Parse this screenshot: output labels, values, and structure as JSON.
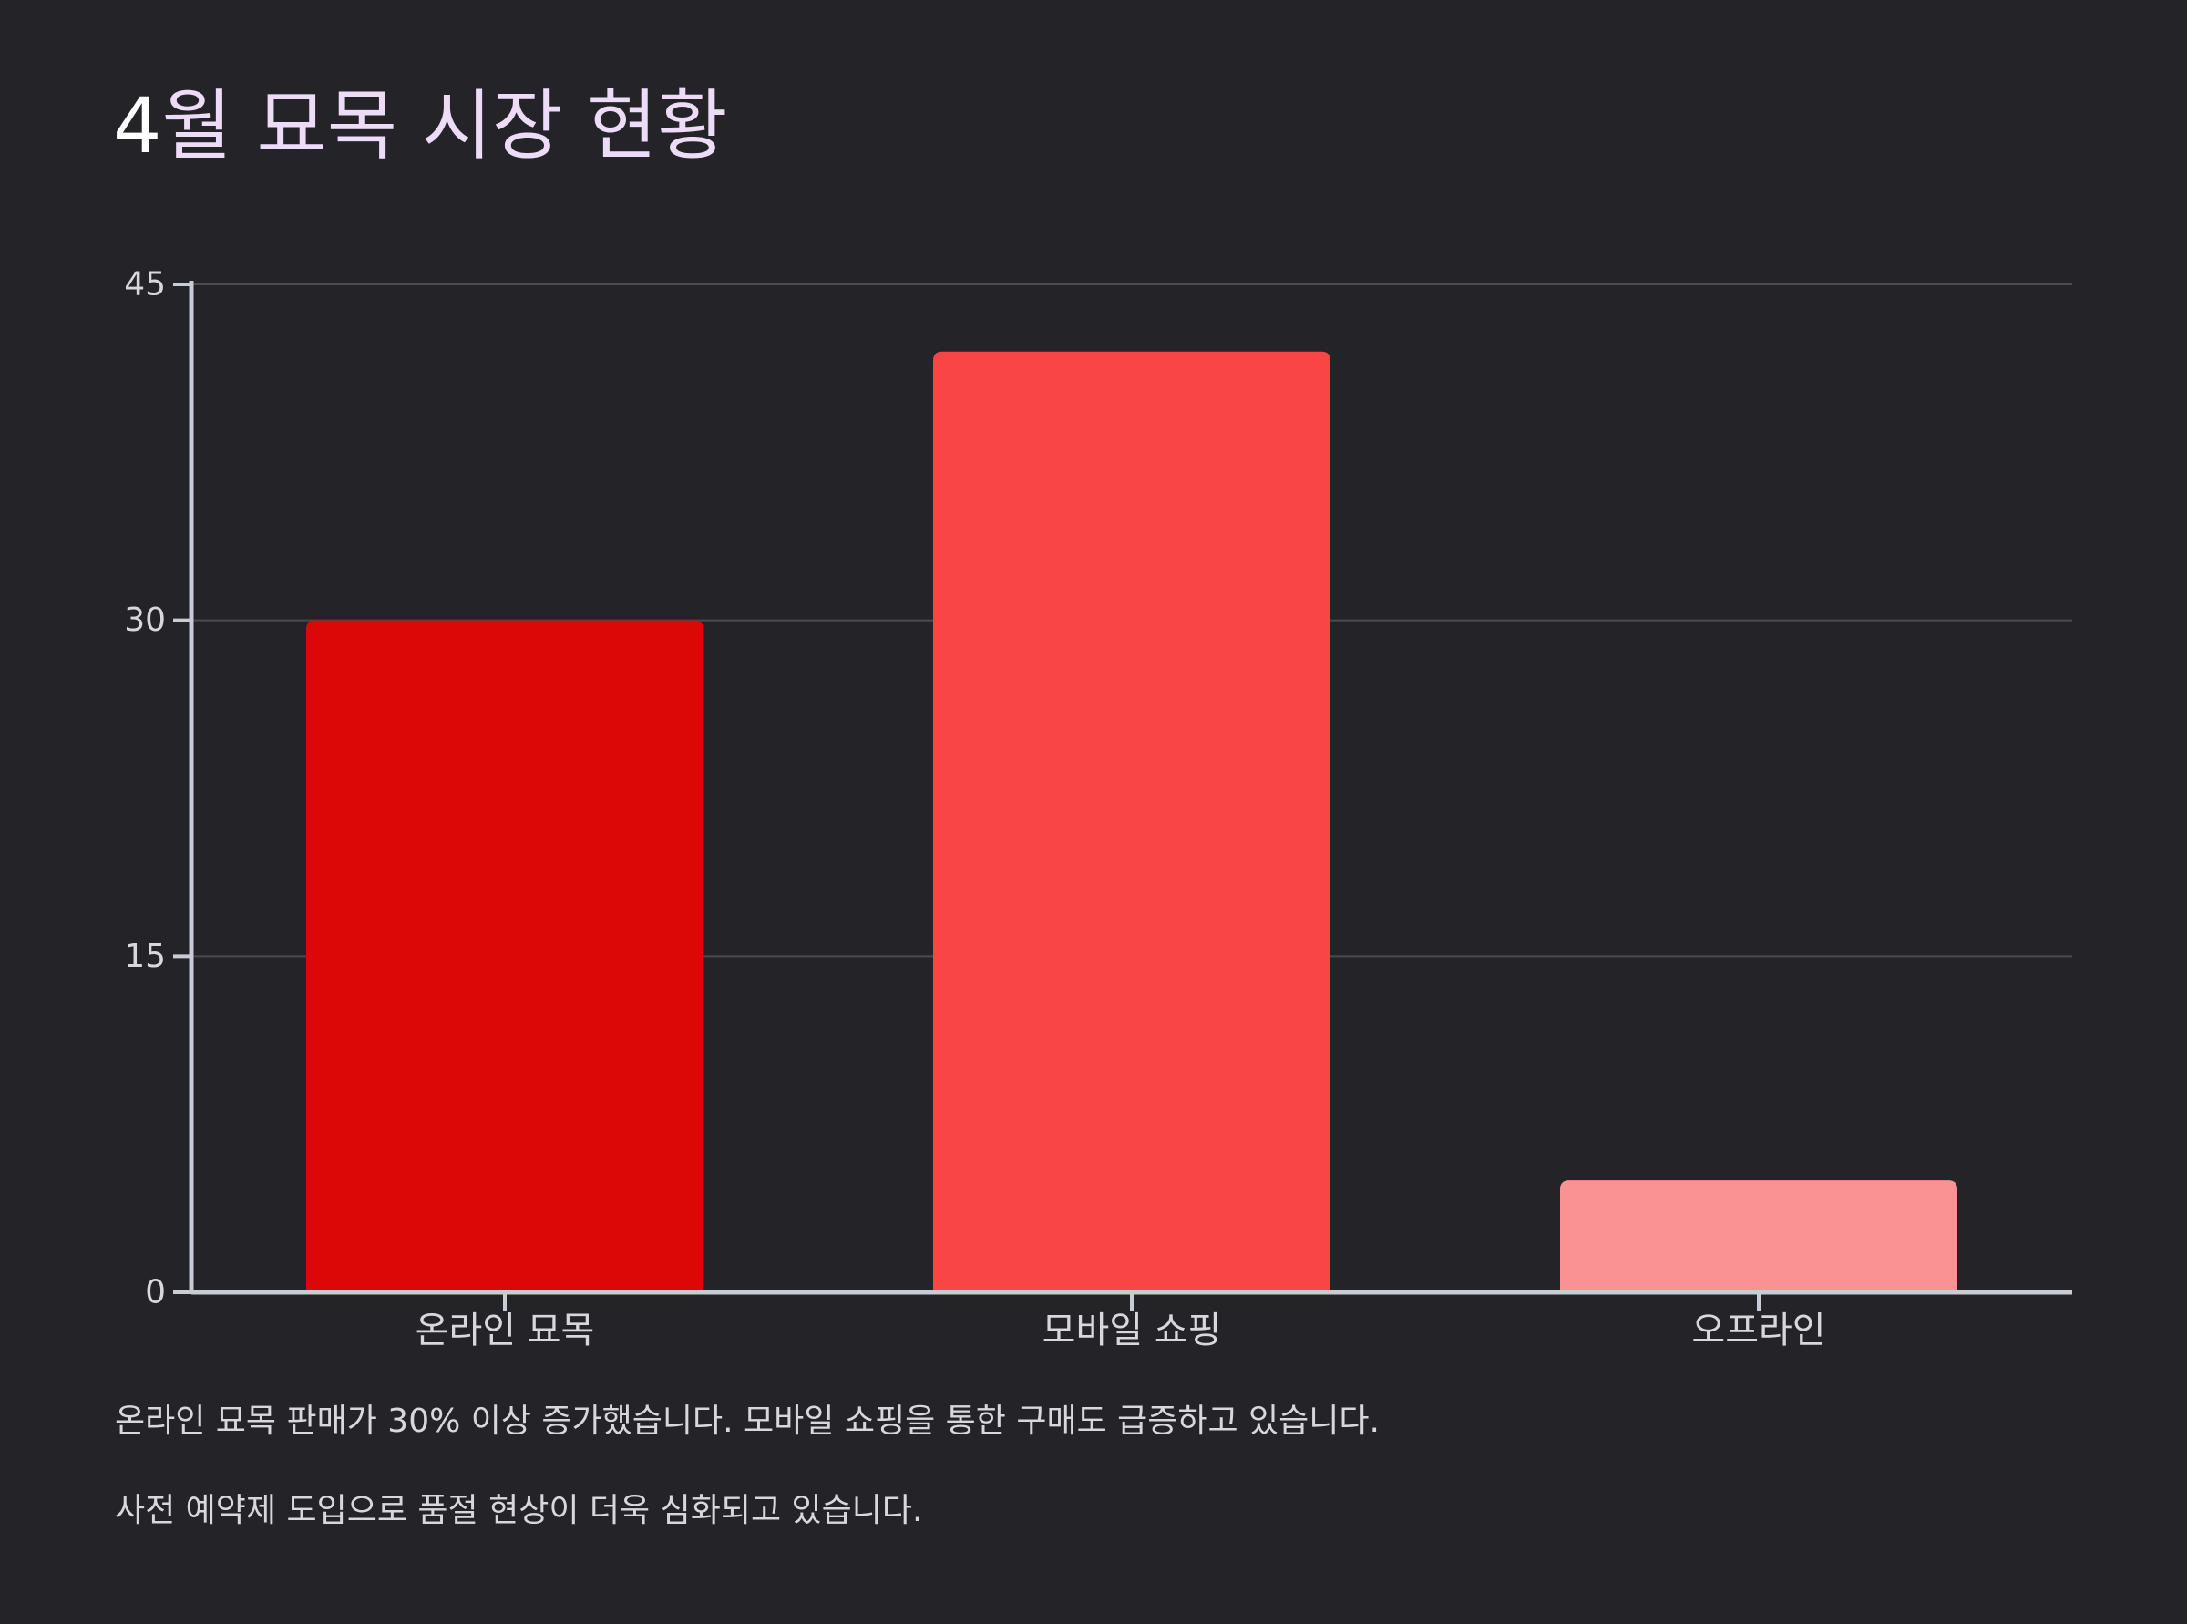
{
  "title": {
    "number": "4",
    "text": "월 묘목 시장 현황"
  },
  "chart_data": {
    "type": "bar",
    "categories": [
      "온라인 묘목",
      "모바일 쇼핑",
      "오프라인"
    ],
    "values": [
      30,
      42,
      5
    ],
    "colors": [
      "#dc0707",
      "#f94545",
      "#fa9294"
    ],
    "yticks": [
      "0",
      "15",
      "30",
      "45"
    ],
    "ylim": [
      0,
      45
    ],
    "grid": true
  },
  "captions": [
    "온라인 묘목 판매가 30% 이상 증가했습니다. 모바일 쇼핑을 통한 구매도 급증하고 있습니다.",
    "사전 예약제 도입으로 품절 현상이 더욱 심화되고 있습니다."
  ],
  "theme": {
    "background": "#232328",
    "axis_color": "#c9ccd4",
    "grid_color": "#4a4a50",
    "text_color": "#d8d8dc"
  }
}
